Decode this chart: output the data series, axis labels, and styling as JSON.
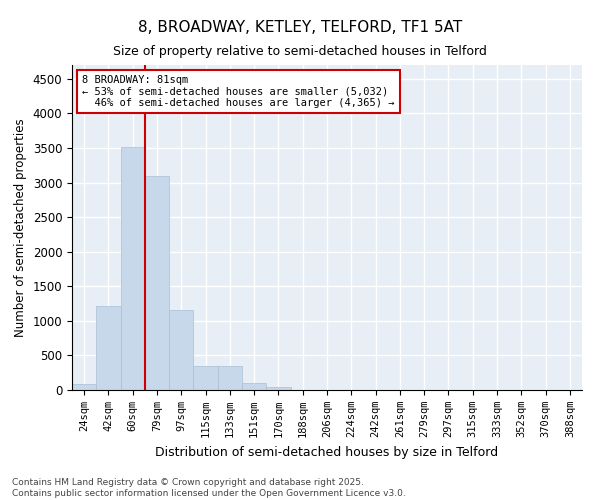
{
  "title": "8, BROADWAY, KETLEY, TELFORD, TF1 5AT",
  "subtitle": "Size of property relative to semi-detached houses in Telford",
  "xlabel": "Distribution of semi-detached houses by size in Telford",
  "ylabel": "Number of semi-detached properties",
  "categories": [
    "24sqm",
    "42sqm",
    "60sqm",
    "79sqm",
    "97sqm",
    "115sqm",
    "133sqm",
    "151sqm",
    "170sqm",
    "188sqm",
    "206sqm",
    "224sqm",
    "242sqm",
    "261sqm",
    "279sqm",
    "297sqm",
    "315sqm",
    "333sqm",
    "352sqm",
    "370sqm",
    "388sqm"
  ],
  "values": [
    80,
    1220,
    3520,
    3100,
    1150,
    350,
    350,
    100,
    50,
    0,
    0,
    0,
    0,
    0,
    0,
    0,
    0,
    0,
    0,
    0,
    0
  ],
  "bar_color": "#c8d8eb",
  "bar_edge_color": "#aabfd4",
  "property_label": "8 BROADWAY: 81sqm",
  "pct_smaller": 53,
  "count_smaller": 5032,
  "pct_larger": 46,
  "count_larger": 4365,
  "vline_x_index": 2.5,
  "ylim": [
    0,
    4700
  ],
  "yticks": [
    0,
    500,
    1000,
    1500,
    2000,
    2500,
    3000,
    3500,
    4000,
    4500
  ],
  "background_color": "#e8eef5",
  "footnote1": "Contains HM Land Registry data © Crown copyright and database right 2025.",
  "footnote2": "Contains public sector information licensed under the Open Government Licence v3.0."
}
